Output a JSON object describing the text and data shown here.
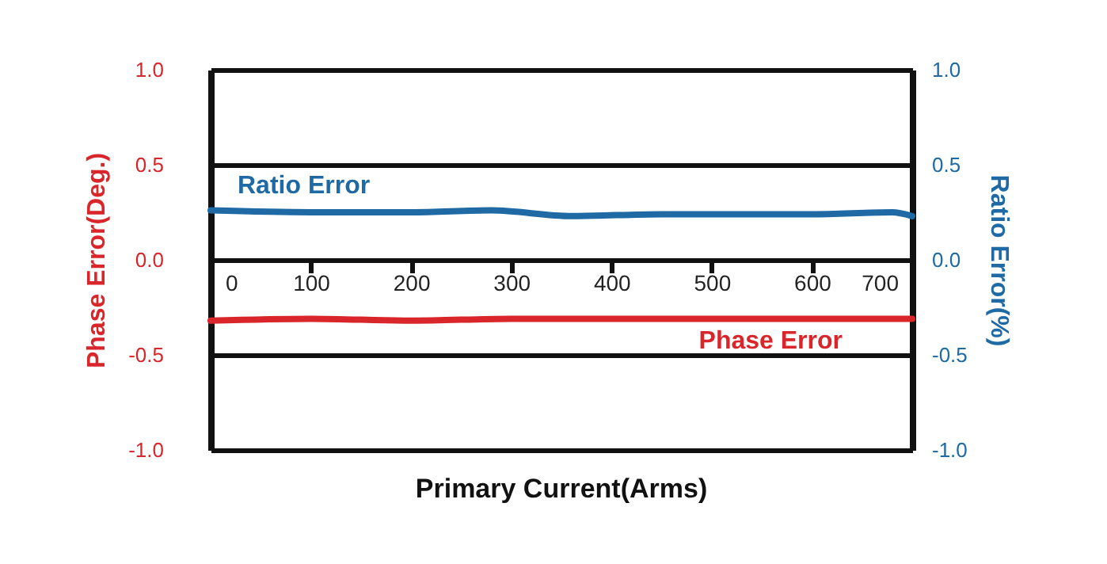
{
  "chart_data": {
    "type": "line",
    "xlabel": "Primary Current(Arms)",
    "ylabel": "Phase Error(Deg.)",
    "y2label": "Ratio Error(%)",
    "xlim": [
      0,
      700
    ],
    "xticks": [
      0,
      100,
      200,
      300,
      400,
      500,
      600,
      700
    ],
    "ylim": [
      -1,
      1
    ],
    "yticks": [
      {
        "value": -1,
        "label": "-1.0"
      },
      -0.5,
      {
        "value": 0,
        "label": "0.0"
      },
      0.5,
      {
        "value": 1,
        "label": "1.0"
      }
    ],
    "y2lim": [
      -1,
      1
    ],
    "y2ticks": [
      {
        "value": -1,
        "label": "-1.0"
      },
      -0.5,
      {
        "value": 0,
        "label": "0.0"
      },
      0.5,
      {
        "value": 1,
        "label": "1.0"
      }
    ],
    "grid": "y",
    "legend": false,
    "marker": "none",
    "line_style": "solid",
    "series": [
      {
        "name": "Ratio Error",
        "color": "#1f6aa5",
        "axis": "y2",
        "x": [
          0,
          100,
          200,
          280,
          360,
          450,
          600,
          680,
          700
        ],
        "values": [
          0.26,
          0.25,
          0.25,
          0.26,
          0.23,
          0.24,
          0.24,
          0.25,
          0.23
        ]
      },
      {
        "name": "Phase Error",
        "color": "#d9262b",
        "x": [
          0,
          100,
          200,
          300,
          400,
          500,
          600,
          700
        ],
        "values": [
          -0.32,
          -0.31,
          -0.32,
          -0.31,
          -0.31,
          -0.31,
          -0.31,
          -0.31
        ]
      }
    ]
  }
}
